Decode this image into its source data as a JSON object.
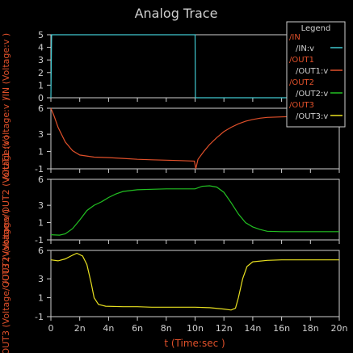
{
  "chart_data": {
    "type": "line",
    "title": "Analog Trace",
    "xlabel": "t (Time:sec )",
    "x_ticks": [
      "0",
      "2n",
      "4n",
      "6n",
      "8n",
      "10n",
      "12n",
      "14n",
      "16n",
      "18n",
      "20n"
    ],
    "xlim": [
      0,
      20
    ],
    "x_unit": "ns",
    "legend": {
      "title": "Legend",
      "position": "top-right",
      "entries": [
        {
          "group": "/IN",
          "label": "/IN:v",
          "color": "#40c8d0"
        },
        {
          "group": "/OUT1",
          "label": "/OUT1:v",
          "color": "#e0502a"
        },
        {
          "group": "/OUT2",
          "label": "/OUT2:v",
          "color": "#22c022"
        },
        {
          "group": "/OUT3",
          "label": "/OUT3:v",
          "color": "#e8e020"
        }
      ]
    },
    "panels": [
      {
        "name": "/IN:v",
        "ylabel": "/IN (Voltage:v )",
        "ylim": [
          0,
          5
        ],
        "yticks": [
          0,
          1,
          2,
          3,
          4,
          5
        ],
        "color": "#40c8d0",
        "points": [
          [
            0,
            0
          ],
          [
            0.05,
            5
          ],
          [
            10,
            5
          ],
          [
            10.02,
            0
          ],
          [
            20,
            0
          ]
        ]
      },
      {
        "name": "/OUT1:v",
        "ylabel": "/OUT1 (Voltage:v )",
        "ylim": [
          -1,
          6
        ],
        "yticks": [
          -1,
          1,
          3,
          6
        ],
        "color": "#e0502a",
        "points": [
          [
            0,
            6
          ],
          [
            0.2,
            5.2
          ],
          [
            0.5,
            3.8
          ],
          [
            1,
            2.1
          ],
          [
            1.5,
            1.1
          ],
          [
            2,
            0.6
          ],
          [
            3,
            0.35
          ],
          [
            4,
            0.3
          ],
          [
            5,
            0.2
          ],
          [
            6,
            0.1
          ],
          [
            7,
            0.05
          ],
          [
            8,
            0
          ],
          [
            9,
            -0.05
          ],
          [
            9.95,
            -0.1
          ],
          [
            10.05,
            -1
          ],
          [
            10.2,
            0.1
          ],
          [
            10.6,
            1.0
          ],
          [
            11,
            1.8
          ],
          [
            11.5,
            2.6
          ],
          [
            12,
            3.3
          ],
          [
            12.5,
            3.8
          ],
          [
            13,
            4.2
          ],
          [
            13.5,
            4.5
          ],
          [
            14,
            4.7
          ],
          [
            14.5,
            4.85
          ],
          [
            15,
            4.95
          ],
          [
            16,
            5.0
          ],
          [
            17,
            5.05
          ],
          [
            18,
            5.05
          ],
          [
            19,
            5.05
          ],
          [
            20,
            5.05
          ]
        ]
      },
      {
        "name": "/OUT2:v",
        "ylabel": "/OUT2 (Voltage/OUT2 (Voltage:v )",
        "ylim": [
          -1,
          6
        ],
        "yticks": [
          -1,
          1,
          3,
          6
        ],
        "color": "#22c022",
        "points": [
          [
            0,
            -0.4
          ],
          [
            0.6,
            -0.45
          ],
          [
            1,
            -0.3
          ],
          [
            1.5,
            0.3
          ],
          [
            2,
            1.3
          ],
          [
            2.5,
            2.4
          ],
          [
            3,
            3.0
          ],
          [
            3.5,
            3.4
          ],
          [
            4,
            3.9
          ],
          [
            4.5,
            4.3
          ],
          [
            5,
            4.6
          ],
          [
            6,
            4.8
          ],
          [
            7,
            4.85
          ],
          [
            8,
            4.9
          ],
          [
            9,
            4.9
          ],
          [
            10,
            4.9
          ],
          [
            10.5,
            5.2
          ],
          [
            11,
            5.25
          ],
          [
            11.5,
            5.1
          ],
          [
            12,
            4.5
          ],
          [
            12.5,
            3.3
          ],
          [
            13,
            2.0
          ],
          [
            13.5,
            1.0
          ],
          [
            14,
            0.5
          ],
          [
            14.5,
            0.2
          ],
          [
            15,
            0.0
          ],
          [
            16,
            -0.05
          ],
          [
            17,
            -0.05
          ],
          [
            18,
            -0.05
          ],
          [
            19,
            -0.05
          ],
          [
            20,
            -0.05
          ]
        ]
      },
      {
        "name": "/OUT3:v",
        "ylabel": "/OUT3 (Voltage/OUT3 (Voltage:v )",
        "ylim": [
          -1,
          6
        ],
        "yticks": [
          -1,
          1,
          3,
          6
        ],
        "color": "#e8e020",
        "points": [
          [
            0,
            5.0
          ],
          [
            0.5,
            4.9
          ],
          [
            1,
            5.1
          ],
          [
            1.5,
            5.5
          ],
          [
            1.8,
            5.7
          ],
          [
            2.2,
            5.4
          ],
          [
            2.5,
            4.5
          ],
          [
            2.8,
            2.5
          ],
          [
            3,
            1.0
          ],
          [
            3.3,
            0.3
          ],
          [
            3.8,
            0.1
          ],
          [
            5,
            0.05
          ],
          [
            6,
            0.05
          ],
          [
            7,
            0.0
          ],
          [
            8,
            0.0
          ],
          [
            9,
            0.0
          ],
          [
            10,
            0.0
          ],
          [
            11,
            -0.05
          ],
          [
            12,
            -0.2
          ],
          [
            12.5,
            -0.3
          ],
          [
            12.8,
            -0.1
          ],
          [
            13,
            1.0
          ],
          [
            13.3,
            3.0
          ],
          [
            13.6,
            4.3
          ],
          [
            14,
            4.8
          ],
          [
            15,
            4.95
          ],
          [
            16,
            5.0
          ],
          [
            17,
            5.0
          ],
          [
            18,
            5.0
          ],
          [
            19,
            5.0
          ],
          [
            20,
            5.0
          ]
        ]
      }
    ]
  }
}
